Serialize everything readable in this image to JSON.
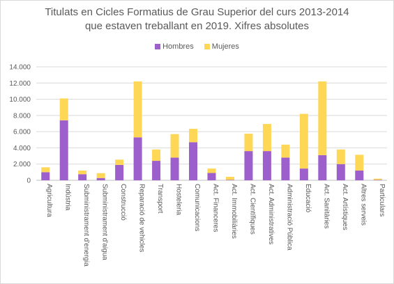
{
  "chart_data": {
    "type": "bar",
    "stacked": true,
    "title_lines": [
      "Titulats en Cicles Formatius  de Grau Superior  del curs 2013-2014",
      "que estaven treballant  en 2019. Xifres absolutes"
    ],
    "legend_position": "top",
    "grid": true,
    "ylim": [
      0,
      14000
    ],
    "yticks": [
      "0",
      "2.000",
      "4.000",
      "6.000",
      "8.000",
      "10.000",
      "12.000",
      "14.000"
    ],
    "categories": [
      "Agricultura",
      "Indústria",
      "Subministrament d'energia",
      "Subministrament d'aigua",
      "Construcció",
      "Reparació de vehicles",
      "Transport",
      "Hosteleria",
      "Comunicacions",
      "Act. Financeres",
      "Act. Immobiliàries",
      "Act. Científiques",
      "Act. Administratives",
      "Administració Pública",
      "Educació",
      "Act. Sanitàries",
      "Act. Artístiques",
      "Altres serveis",
      "Particulars"
    ],
    "series": [
      {
        "name": "Hombres",
        "color": "#9c5fcc",
        "values": [
          1000,
          7400,
          750,
          280,
          1900,
          5300,
          2400,
          2800,
          4700,
          900,
          50,
          3600,
          3600,
          2800,
          1450,
          3100,
          2000,
          1200,
          50
        ]
      },
      {
        "name": "Mujeres",
        "color": "#ffd757",
        "values": [
          600,
          2700,
          450,
          600,
          650,
          6900,
          1400,
          2900,
          1650,
          550,
          380,
          2150,
          3350,
          1600,
          6750,
          9100,
          1800,
          1950,
          150
        ]
      }
    ]
  }
}
